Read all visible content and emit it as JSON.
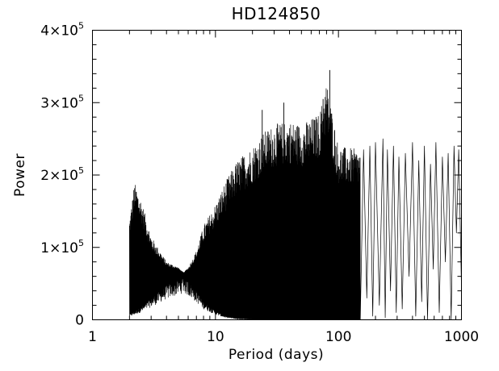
{
  "chart_data": {
    "type": "line",
    "title": "HD124850",
    "xlabel": "Period (days)",
    "ylabel": "Power",
    "x_scale": "log",
    "xlim": [
      1,
      1000
    ],
    "ylim": [
      0,
      400000
    ],
    "grid": false,
    "legend": "none",
    "line_color": "#000000",
    "x_ticks": [
      {
        "value": 1,
        "label": "1"
      },
      {
        "value": 10,
        "label": "10"
      },
      {
        "value": 100,
        "label": "100"
      },
      {
        "value": 1000,
        "label": "1000"
      }
    ],
    "y_ticks": [
      {
        "value": 0,
        "mantissa": "0",
        "exponent": ""
      },
      {
        "value": 100000,
        "mantissa": "1×10",
        "exponent": "5"
      },
      {
        "value": 200000,
        "mantissa": "2×10",
        "exponent": "5"
      },
      {
        "value": 300000,
        "mantissa": "3×10",
        "exponent": "5"
      },
      {
        "value": 400000,
        "mantissa": "4×10",
        "exponent": "5"
      }
    ],
    "envelope": {
      "period_days": [
        2.0,
        2.1,
        2.2,
        2.5,
        3.0,
        4.0,
        5.0,
        5.5,
        6.0,
        7.0,
        8.0,
        10.0,
        12.0,
        15.0,
        20.0,
        25.0,
        30.0,
        40.0,
        50.0,
        70.0,
        80.0,
        100.0,
        150.0
      ],
      "upper_power": [
        140000,
        165000,
        190000,
        165000,
        115000,
        80000,
        72000,
        65000,
        72000,
        95000,
        130000,
        160000,
        190000,
        220000,
        240000,
        260000,
        270000,
        275000,
        270000,
        285000,
        330000,
        240000,
        235000
      ],
      "lower_power": [
        8000,
        10000,
        12000,
        18000,
        30000,
        48000,
        58000,
        62000,
        55000,
        40000,
        25000,
        12000,
        5000,
        2000,
        1000,
        1000,
        1000,
        1000,
        1000,
        1000,
        1000,
        1000,
        1000
      ]
    },
    "peaks": [
      {
        "period_days": 85,
        "power": 345000
      },
      {
        "period_days": 75,
        "power": 305000
      },
      {
        "period_days": 36,
        "power": 300000
      },
      {
        "period_days": 24,
        "power": 290000
      }
    ],
    "long_period_maxima": {
      "period_days": [
        160,
        180,
        200,
        230,
        250,
        280,
        310,
        350,
        400,
        450,
        500,
        560,
        620,
        700,
        780,
        870,
        950
      ],
      "power": [
        235000,
        240000,
        245000,
        250000,
        235000,
        240000,
        225000,
        230000,
        245000,
        220000,
        240000,
        215000,
        245000,
        225000,
        230000,
        240000,
        235000
      ]
    },
    "long_period_minima": {
      "period_days": [
        170,
        190,
        215,
        240,
        265,
        295,
        330,
        375,
        425,
        475,
        530,
        590,
        660,
        740,
        825,
        910,
        1000
      ],
      "power": [
        30000,
        5000,
        20000,
        3000,
        40000,
        10000,
        15000,
        60000,
        5000,
        25000,
        0,
        70000,
        10000,
        80000,
        0,
        120000,
        45000
      ]
    }
  }
}
